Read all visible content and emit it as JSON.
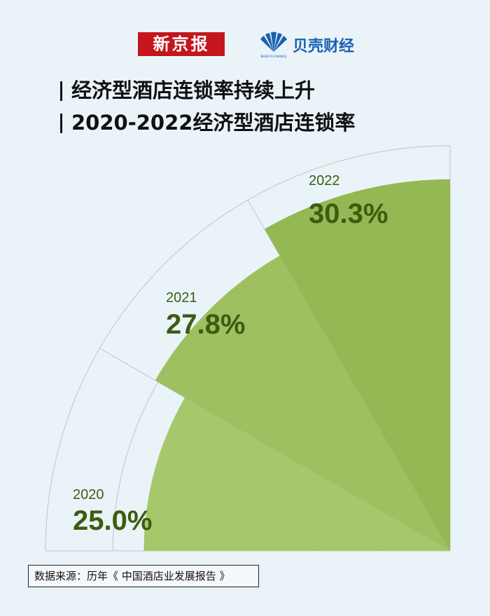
{
  "logos": {
    "xinjingbao": "新京报",
    "beike": "贝壳财经",
    "beike_sub": "BEIKECAI FINANCE"
  },
  "title": {
    "line1": "经济型酒店连锁率持续上升",
    "line2": "2020-2022经济型酒店连锁率"
  },
  "chart_data": {
    "type": "polar-bar",
    "title": "2020-2022经济型酒店连锁率",
    "categories": [
      "2020",
      "2021",
      "2022"
    ],
    "values": [
      25.0,
      27.8,
      30.3
    ],
    "value_labels": [
      "25.0%",
      "27.8%",
      "30.3%"
    ],
    "unit": "%",
    "grid": true
  },
  "colors": {
    "bar_2020": "#a3c463",
    "bar_2021": "#9bbd57",
    "bar_2022": "#8fb44a",
    "label_value": "#3d5c0f",
    "label_year": "#3d5c0f",
    "grid": "#b8c6cc"
  },
  "source": "数据来源：历年《 中国酒店业发展报告 》"
}
